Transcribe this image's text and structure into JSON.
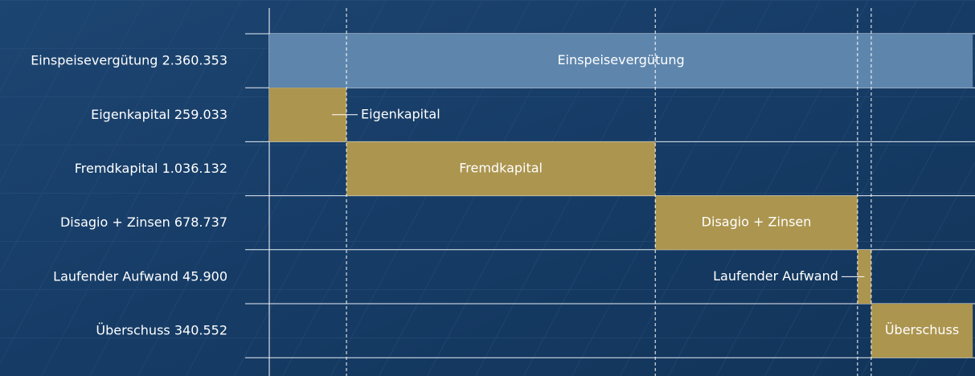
{
  "chart_data": {
    "type": "waterfall",
    "categories": [
      "Einspeisevergütung",
      "Eigenkapital",
      "Fremdkapital",
      "Disagio + Zinsen",
      "Laufender Aufwand",
      "Überschuss"
    ],
    "values": [
      2360353,
      259033,
      1036132,
      678737,
      45900,
      340552
    ],
    "value_labels": [
      "2.360.353",
      "259.033",
      "1.036.132",
      "678.737",
      "45.900",
      "340.552"
    ],
    "total_color": "#5e86ad",
    "color": "#ac954f",
    "xlim": [
      0,
      2368000
    ]
  }
}
